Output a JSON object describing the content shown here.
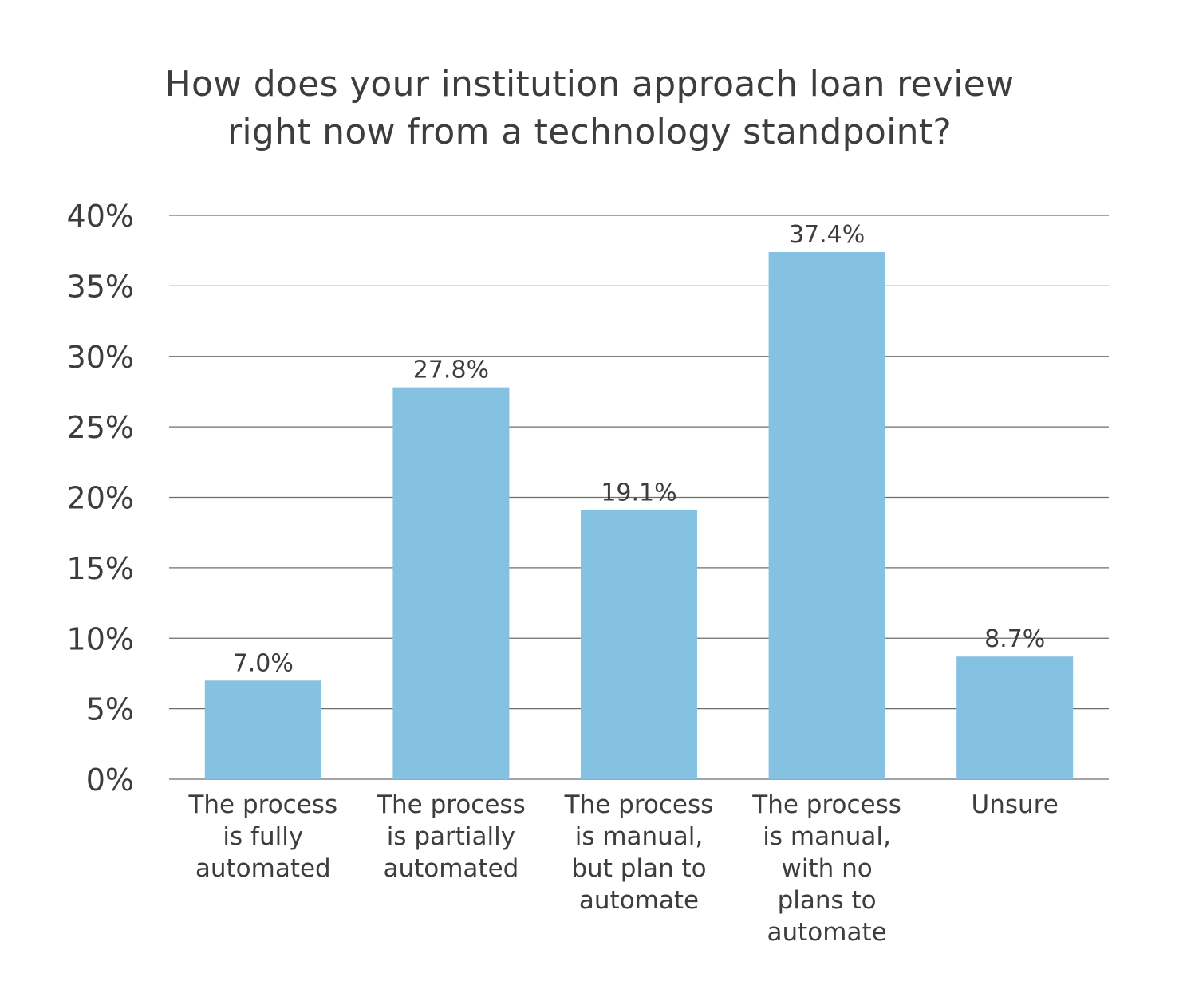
{
  "title_lines": [
    "How does your institution approach loan review",
    "right now from a technology standpoint?"
  ],
  "colors": {
    "bar": "#85c1e0",
    "gridline": "#6e6e6e",
    "text": "#3d3d3d"
  },
  "chart_data": {
    "type": "bar",
    "title": "How does your institution approach loan review right now from a technology standpoint?",
    "categories": [
      "The process is fully automated",
      "The process is partially automated",
      "The process is manual, but plan to automate",
      "The process is manual, with no plans to automate",
      "Unsure"
    ],
    "category_label_lines": [
      [
        "The process",
        "is fully",
        "automated"
      ],
      [
        "The process",
        "is partially",
        "automated"
      ],
      [
        "The process",
        "is manual,",
        "but plan to",
        "automate"
      ],
      [
        "The process",
        "is manual,",
        "with no",
        "plans to",
        "automate"
      ],
      [
        "Unsure"
      ]
    ],
    "values": [
      7.0,
      27.8,
      19.1,
      37.4,
      8.7
    ],
    "data_labels": [
      "7.0%",
      "27.8%",
      "19.1%",
      "37.4%",
      "8.7%"
    ],
    "yticks": [
      0,
      5,
      10,
      15,
      20,
      25,
      30,
      35,
      40
    ],
    "ytick_labels": [
      "0%",
      "5%",
      "10%",
      "15%",
      "20%",
      "25%",
      "30%",
      "35%",
      "40%"
    ],
    "ylim": [
      0,
      40
    ],
    "xlabel": "",
    "ylabel": "",
    "grid": true,
    "legend": "none"
  }
}
